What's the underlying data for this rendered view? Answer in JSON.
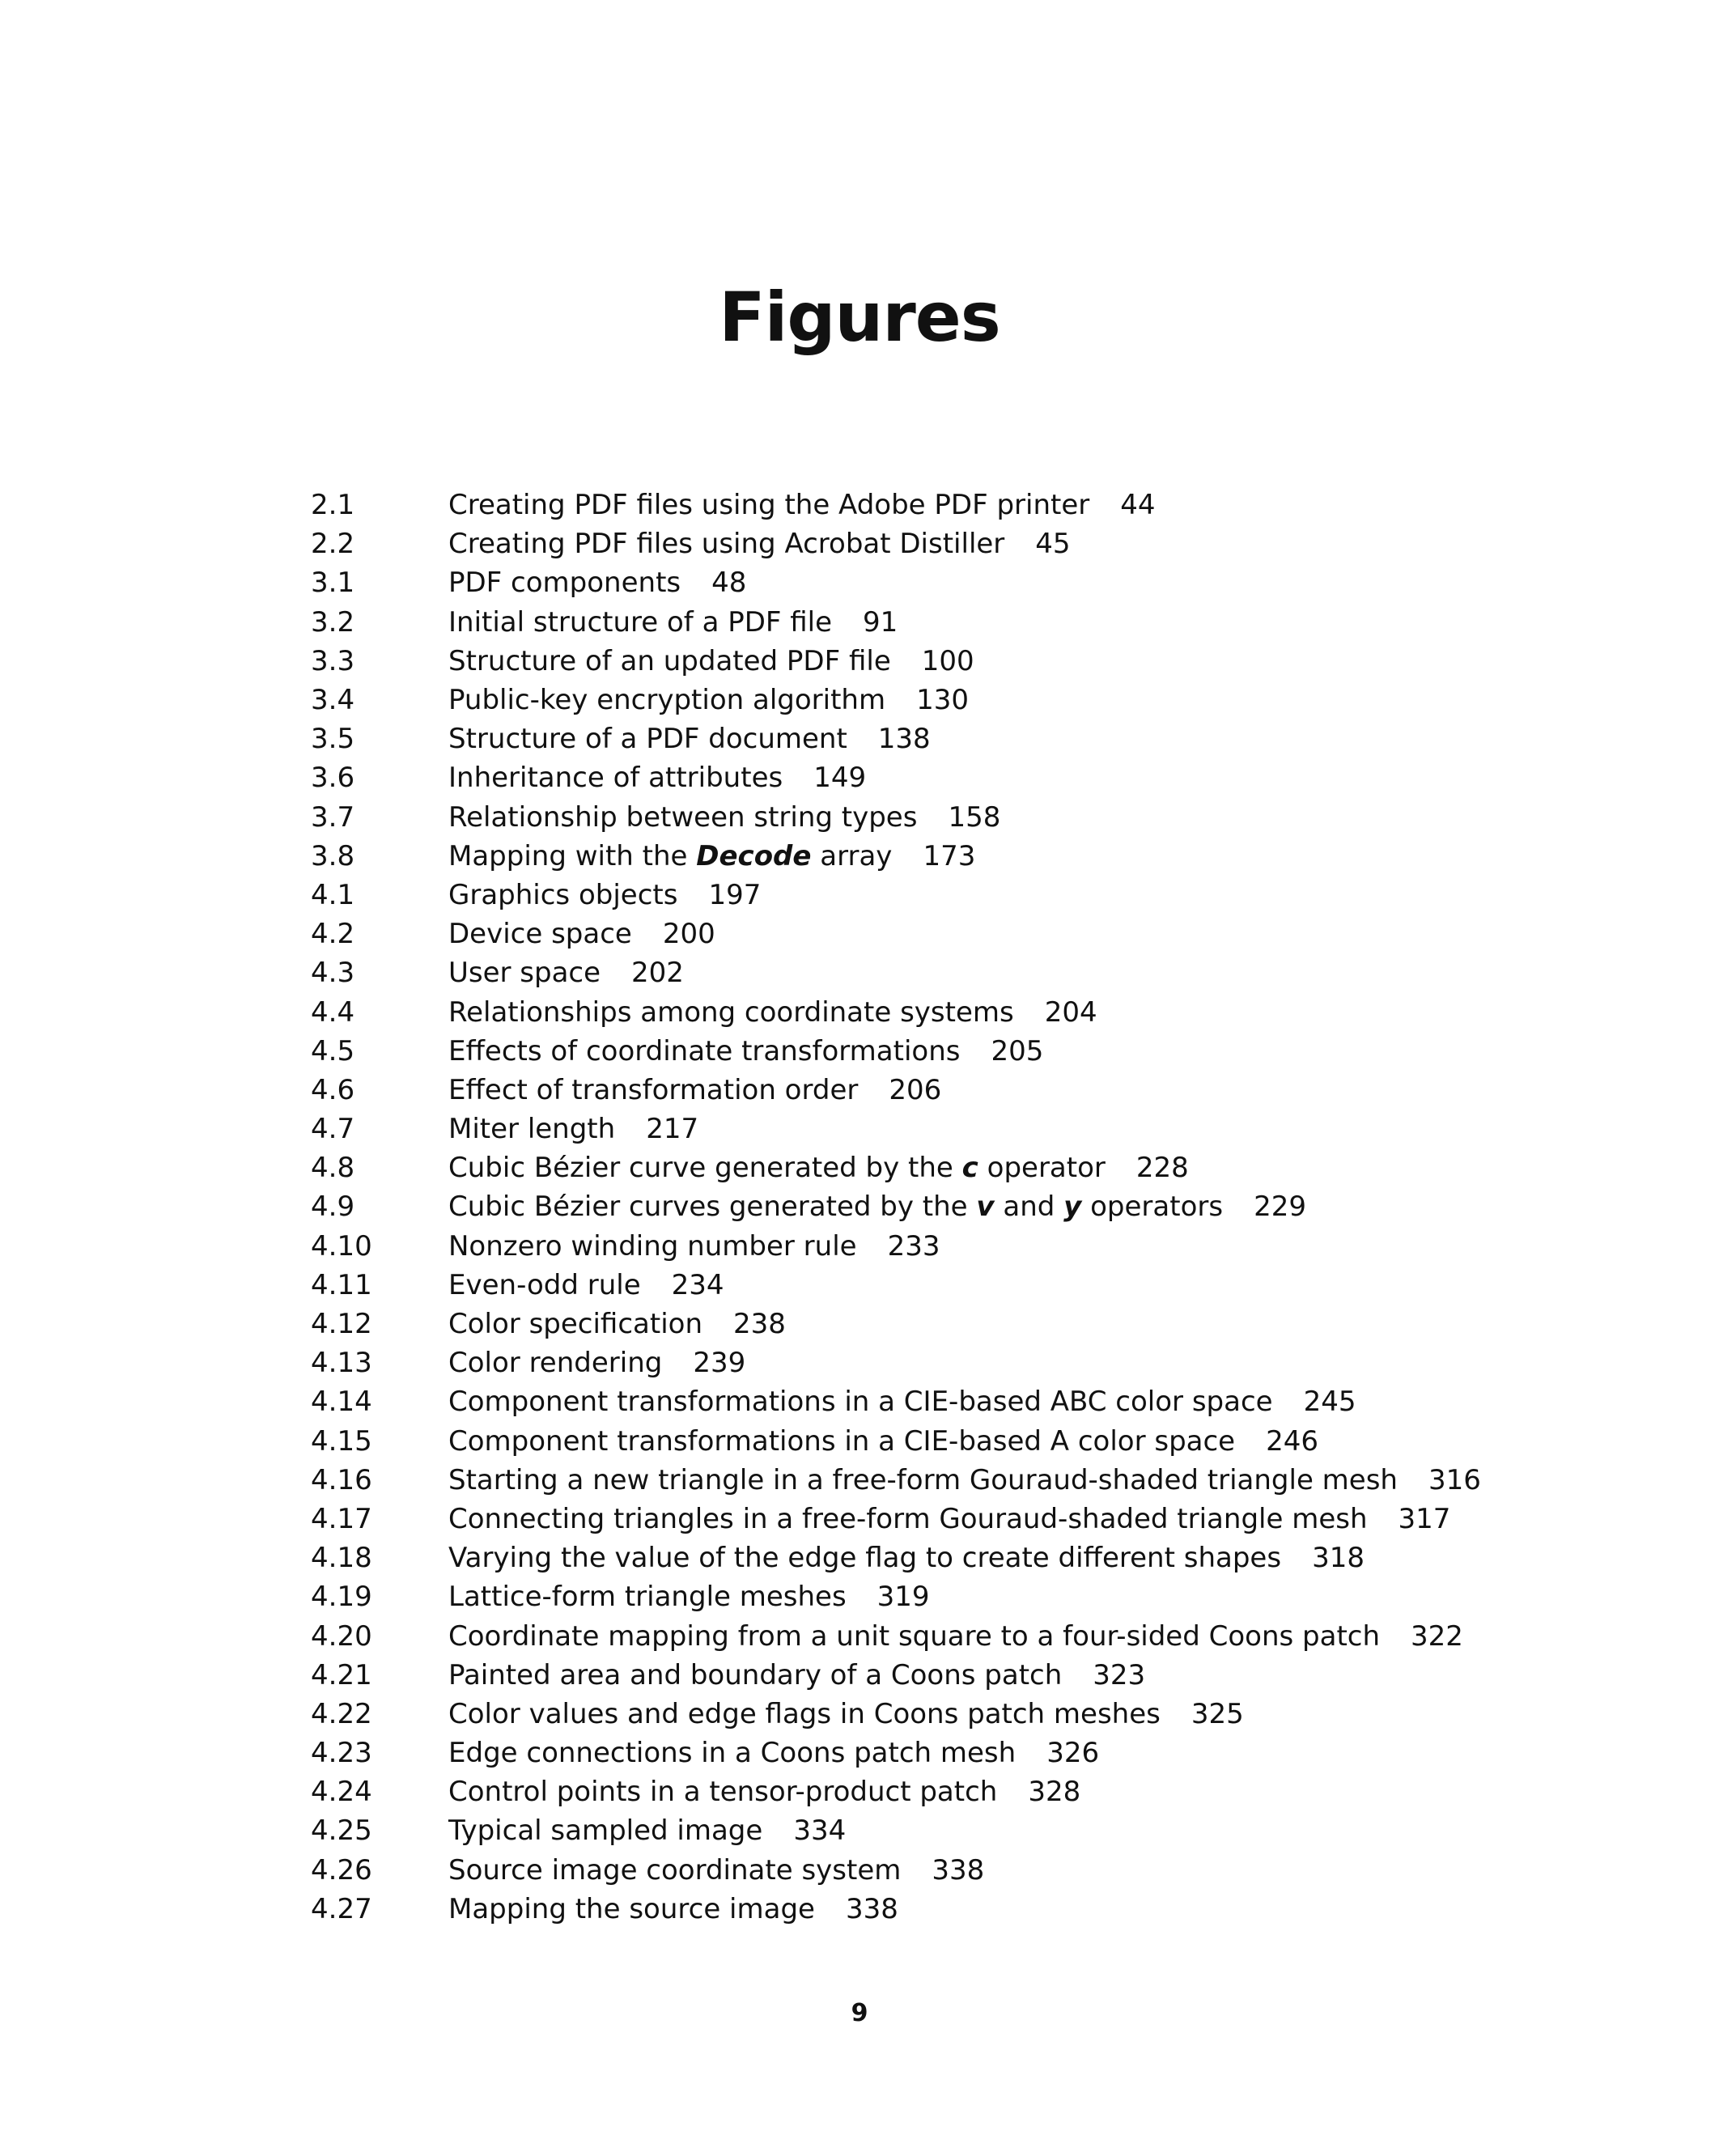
{
  "page": {
    "title": "Figures",
    "folio": "9"
  },
  "figures": [
    {
      "number": "2.1",
      "title": "Creating PDF files using the Adobe PDF printer",
      "page": "44"
    },
    {
      "number": "2.2",
      "title": "Creating PDF files using Acrobat Distiller",
      "page": "45"
    },
    {
      "number": "3.1",
      "title": "PDF components",
      "page": "48"
    },
    {
      "number": "3.2",
      "title": "Initial structure of a PDF file",
      "page": "91"
    },
    {
      "number": "3.3",
      "title": "Structure of an updated PDF file",
      "page": "100"
    },
    {
      "number": "3.4",
      "title": "Public-key encryption algorithm",
      "page": "130"
    },
    {
      "number": "3.5",
      "title": "Structure of a PDF document",
      "page": "138"
    },
    {
      "number": "3.6",
      "title": "Inheritance of attributes",
      "page": "149"
    },
    {
      "number": "3.7",
      "title": "Relationship between string types",
      "page": "158"
    },
    {
      "number": "3.8",
      "title_before": "Mapping with the ",
      "title_italic": "Decode",
      "title_after": " array",
      "page": "173"
    },
    {
      "number": "4.1",
      "title": "Graphics objects",
      "page": "197"
    },
    {
      "number": "4.2",
      "title": "Device space",
      "page": "200"
    },
    {
      "number": "4.3",
      "title": "User space",
      "page": "202"
    },
    {
      "number": "4.4",
      "title": "Relationships among coordinate systems",
      "page": "204"
    },
    {
      "number": "4.5",
      "title": "Effects of coordinate transformations",
      "page": "205"
    },
    {
      "number": "4.6",
      "title": "Effect of transformation order",
      "page": "206"
    },
    {
      "number": "4.7",
      "title": "Miter length",
      "page": "217"
    },
    {
      "number": "4.8",
      "title_before": "Cubic Bézier curve generated by the ",
      "title_italic": "c",
      "title_after": " operator",
      "page": "228"
    },
    {
      "number": "4.9",
      "title_before": "Cubic Bézier curves generated by the ",
      "title_italic": "v",
      "title_middle": " and ",
      "title_italic2": "y",
      "title_after": " operators",
      "page": "229"
    },
    {
      "number": "4.10",
      "title": "Nonzero winding number rule",
      "page": "233"
    },
    {
      "number": "4.11",
      "title": "Even-odd rule",
      "page": "234"
    },
    {
      "number": "4.12",
      "title": "Color specification",
      "page": "238"
    },
    {
      "number": "4.13",
      "title": "Color rendering",
      "page": "239"
    },
    {
      "number": "4.14",
      "title": "Component transformations in a CIE-based ABC color space",
      "page": "245"
    },
    {
      "number": "4.15",
      "title": "Component transformations in a CIE-based A color space",
      "page": "246"
    },
    {
      "number": "4.16",
      "title": "Starting a new triangle in a free-form Gouraud-shaded triangle mesh",
      "page": "316"
    },
    {
      "number": "4.17",
      "title": "Connecting triangles in a free-form Gouraud-shaded triangle mesh",
      "page": "317"
    },
    {
      "number": "4.18",
      "title": "Varying the value of the edge flag to create different shapes",
      "page": "318"
    },
    {
      "number": "4.19",
      "title": "Lattice-form triangle meshes",
      "page": "319"
    },
    {
      "number": "4.20",
      "title": "Coordinate mapping from a unit square to a four-sided Coons patch",
      "page": "322"
    },
    {
      "number": "4.21",
      "title": "Painted area and boundary of a Coons patch",
      "page": "323"
    },
    {
      "number": "4.22",
      "title": "Color values and edge flags in Coons patch meshes",
      "page": "325"
    },
    {
      "number": "4.23",
      "title": "Edge connections in a Coons patch mesh",
      "page": "326"
    },
    {
      "number": "4.24",
      "title": "Control points in a tensor-product patch",
      "page": "328"
    },
    {
      "number": "4.25",
      "title": "Typical sampled image",
      "page": "334"
    },
    {
      "number": "4.26",
      "title": "Source image coordinate system",
      "page": "338"
    },
    {
      "number": "4.27",
      "title": "Mapping the source image",
      "page": "338"
    }
  ]
}
